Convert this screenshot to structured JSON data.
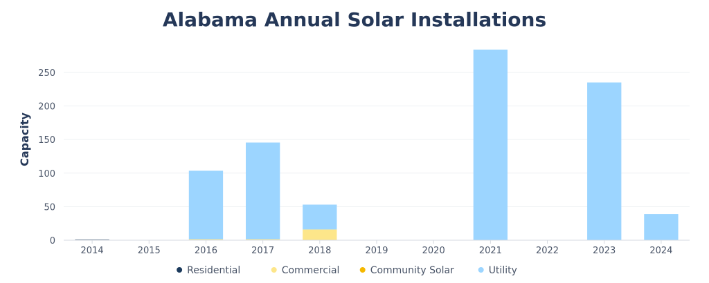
{
  "chart_data": {
    "type": "bar",
    "stacked": true,
    "title": "Alabama Annual Solar Installations",
    "xlabel": "",
    "ylabel": "Capacity",
    "ylim": [
      0,
      290
    ],
    "yticks": [
      0,
      50,
      100,
      150,
      200,
      250
    ],
    "categories": [
      "2014",
      "2015",
      "2016",
      "2017",
      "2018",
      "2019",
      "2020",
      "2021",
      "2022",
      "2023",
      "2024"
    ],
    "series": [
      {
        "name": "Residential",
        "color": "#1b3a5c",
        "values": [
          1,
          0,
          0,
          0,
          0,
          0,
          0,
          0,
          0,
          0,
          0
        ]
      },
      {
        "name": "Commercial",
        "color": "#fde68a",
        "values": [
          0,
          0,
          1.5,
          1.5,
          16,
          0,
          0,
          0,
          0,
          0,
          0
        ]
      },
      {
        "name": "Community Solar",
        "color": "#f5b800",
        "values": [
          0,
          0,
          0,
          0,
          0,
          0,
          0,
          0,
          0,
          0,
          0
        ]
      },
      {
        "name": "Utility",
        "color": "#9cd5ff",
        "values": [
          0,
          0,
          102,
          144,
          37,
          0,
          0,
          284,
          0,
          235,
          39
        ]
      }
    ],
    "grid": true,
    "legend": "bottom"
  }
}
